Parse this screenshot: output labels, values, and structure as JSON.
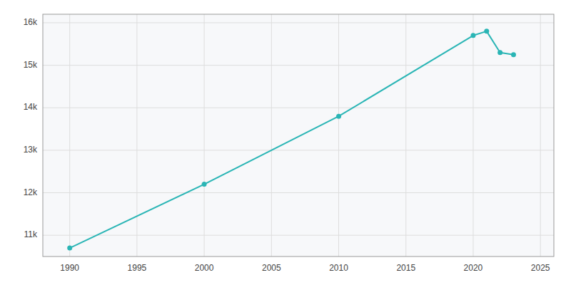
{
  "chart_data": {
    "type": "line",
    "x": [
      1990,
      2000,
      2010,
      2020,
      2021,
      2022,
      2023
    ],
    "values": [
      10700,
      12200,
      13800,
      15700,
      15800,
      15300,
      15250
    ],
    "color": "#2ab5b5",
    "marker": "circle",
    "xlim": [
      1988,
      2026
    ],
    "ylim": [
      10500,
      16200
    ],
    "xticks": [
      1990,
      1995,
      2000,
      2005,
      2010,
      2015,
      2020,
      2025
    ],
    "yticks": [
      {
        "value": 11000,
        "label": "11k"
      },
      {
        "value": 12000,
        "label": "12k"
      },
      {
        "value": 13000,
        "label": "13k"
      },
      {
        "value": 14000,
        "label": "14k"
      },
      {
        "value": 15000,
        "label": "15k"
      },
      {
        "value": 16000,
        "label": "16k"
      }
    ],
    "grid": true
  }
}
